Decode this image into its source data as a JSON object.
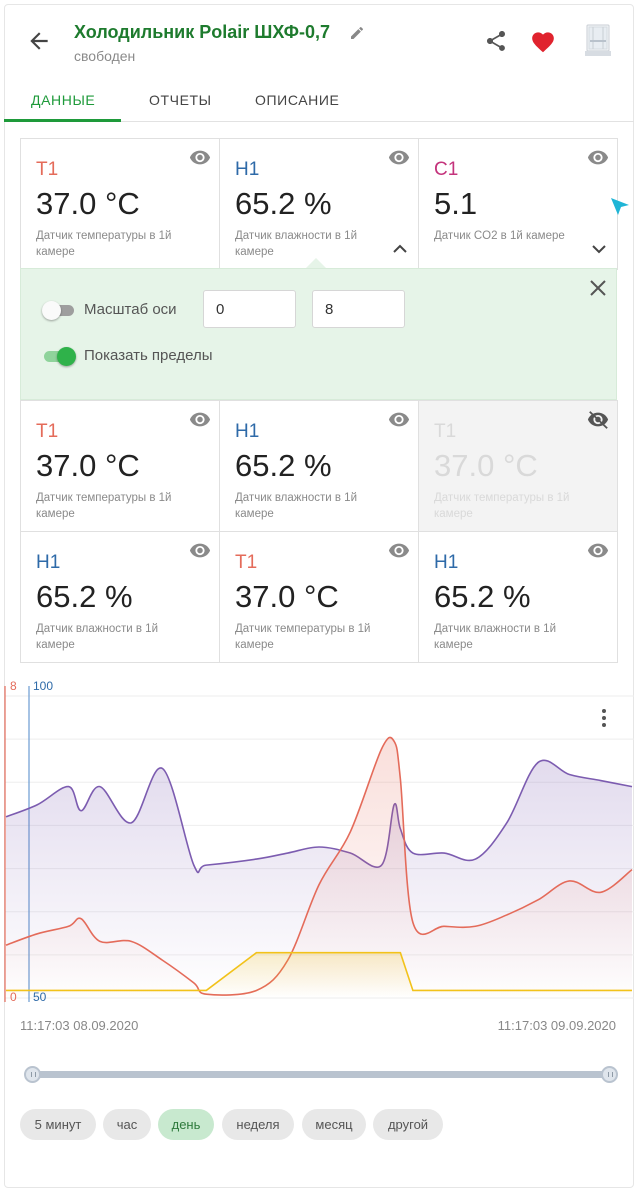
{
  "header": {
    "title": "Холодильник Polair ШХФ-0,7",
    "status": "свободен",
    "icons": [
      "back-arrow-icon",
      "pencil-icon",
      "share-icon",
      "heart-icon",
      "device-thumbnail-icon"
    ]
  },
  "tabs": [
    {
      "label": "ДАННЫЕ",
      "active": true
    },
    {
      "label": "ОТЧЕТЫ",
      "active": false
    },
    {
      "label": "ОПИСАНИЕ",
      "active": false
    }
  ],
  "colors": {
    "accent": "#1e9a3a",
    "title_green": "#1e7b2e",
    "temperature": "#e46b5a",
    "humidity": "#2e6aa8",
    "co2": "#c4337c",
    "series_purple": "#7c5cb0",
    "series_yellow": "#f2c21a",
    "heart": "#e0232e"
  },
  "cards_top": [
    {
      "code": "T1",
      "value": "37.0 °C",
      "desc": "Датчик температуры в 1й камере",
      "visible": true
    },
    {
      "code": "H1",
      "value": "65.2 %",
      "desc": "Датчик влажности в 1й камере",
      "visible": true,
      "expanded": true
    },
    {
      "code": "C1",
      "value": "5.1",
      "desc": "Датчик CO2 в 1й камере",
      "visible": true
    }
  ],
  "panel": {
    "axis_scale_label": "Масштаб оси",
    "axis_scale_enabled": false,
    "min_value": "0",
    "max_value": "8",
    "show_limits_label": "Показать пределы",
    "show_limits_enabled": true
  },
  "cards_mid": [
    {
      "code": "T1",
      "value": "37.0 °C",
      "desc": "Датчик температуры в 1й камере",
      "visible": true
    },
    {
      "code": "H1",
      "value": "65.2 %",
      "desc": "Датчик влажности в 1й камере",
      "visible": true
    },
    {
      "code": "T1",
      "value": "37.0 °C",
      "desc": "Датчик температуры в 1й камере",
      "visible": false
    }
  ],
  "cards_bottom": [
    {
      "code": "H1",
      "value": "65.2 %",
      "desc": "Датчик влажности в 1й камере",
      "visible": true
    },
    {
      "code": "T1",
      "value": "37.0 °C",
      "desc": "Датчик температуры в 1й камере",
      "visible": true
    },
    {
      "code": "H1",
      "value": "65.2 %",
      "desc": "Датчик влажности в 1й камере",
      "visible": true
    }
  ],
  "chart": {
    "left_axis_max": "8",
    "left_axis_min": "0",
    "right_axis_max": "100",
    "right_axis_min": "50",
    "time_start": "11:17:03 08.09.2020",
    "time_end": "11:17:03 09.09.2020"
  },
  "chart_data": {
    "type": "line",
    "x_range": [
      "11:17:03 08.09.2020",
      "11:17:03 09.09.2020"
    ],
    "x": [
      0,
      0.05,
      0.1,
      0.12,
      0.15,
      0.2,
      0.25,
      0.3,
      0.32,
      0.4,
      0.45,
      0.5,
      0.55,
      0.6,
      0.62,
      0.63,
      0.65,
      0.7,
      0.75,
      0.8,
      0.85,
      0.9,
      0.95,
      1.0
    ],
    "series": [
      {
        "color": "#7c5cb0",
        "axis": "right",
        "ylim": [
          50,
          100
        ],
        "values": [
          80,
          82,
          85,
          81,
          85,
          79,
          88,
          72,
          72,
          73,
          74,
          75,
          74,
          72,
          82,
          78,
          74,
          74,
          73,
          79,
          89,
          87,
          86,
          85
        ]
      },
      {
        "color": "#e46b5a",
        "axis": "left",
        "ylim": [
          0,
          8
        ],
        "values": [
          1.4,
          1.7,
          1.9,
          2.1,
          1.5,
          1.5,
          1.0,
          0.4,
          0.1,
          0.2,
          1.0,
          3.0,
          4.4,
          6.6,
          6.8,
          5.8,
          2.0,
          1.9,
          1.9,
          2.2,
          2.6,
          3.1,
          2.8,
          3.4
        ]
      },
      {
        "color": "#f2c21a",
        "axis": "left",
        "ylim": [
          0,
          8
        ],
        "values": [
          0.2,
          0.2,
          0.2,
          0.2,
          0.2,
          0.2,
          0.2,
          0.2,
          0.2,
          1.2,
          1.2,
          1.2,
          1.2,
          1.2,
          1.2,
          1.2,
          0.2,
          0.2,
          0.2,
          0.2,
          0.2,
          0.2,
          0.2,
          0.2
        ]
      }
    ],
    "grid": true
  },
  "ranges": [
    {
      "label": "5 минут",
      "active": false
    },
    {
      "label": "час",
      "active": false
    },
    {
      "label": "день",
      "active": true
    },
    {
      "label": "неделя",
      "active": false
    },
    {
      "label": "месяц",
      "active": false
    },
    {
      "label": "другой",
      "active": false
    }
  ]
}
